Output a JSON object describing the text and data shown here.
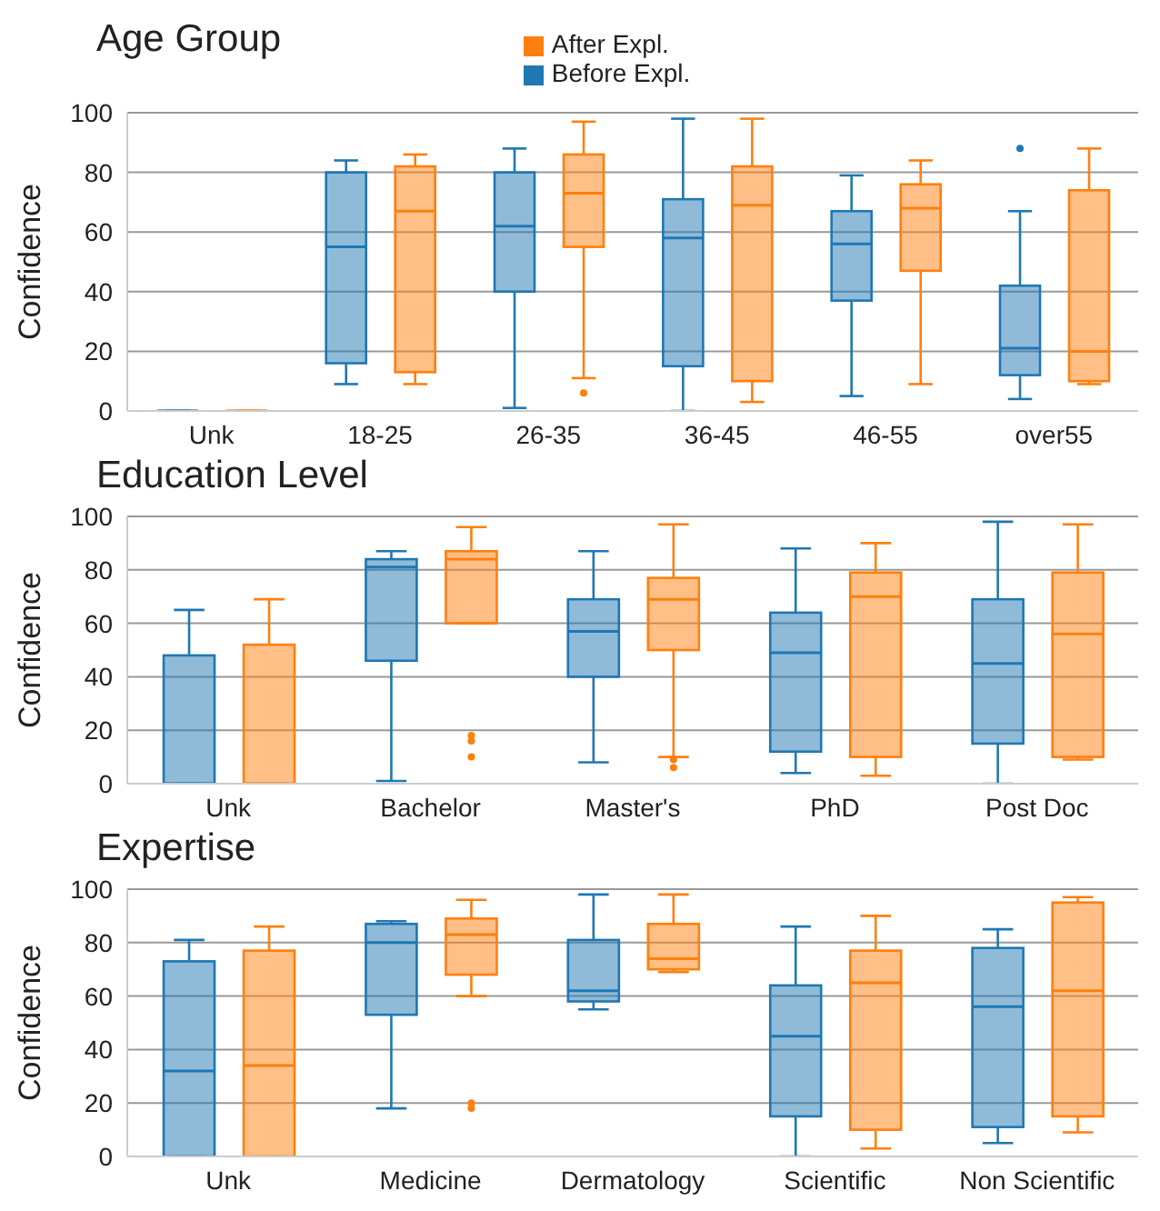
{
  "chart_data": [
    {
      "type": "box",
      "title": "Age Group",
      "ylabel": "Confidence",
      "categories": [
        "Unk",
        "18-25",
        "26-35",
        "36-45",
        "46-55",
        "over55"
      ],
      "ylim": [
        0,
        100
      ],
      "yticks": [
        0,
        20,
        40,
        60,
        80,
        100
      ],
      "grid": "y",
      "legend": "top",
      "series": [
        {
          "name": "Before Expl.",
          "color": "#1f77b4",
          "boxes": [
            {
              "low": 0,
              "q1": 0,
              "median": 0,
              "q3": 0,
              "high": 0
            },
            {
              "low": 9,
              "q1": 16,
              "median": 55,
              "q3": 80,
              "high": 84
            },
            {
              "low": 1,
              "q1": 40,
              "median": 62,
              "q3": 80,
              "high": 88
            },
            {
              "low": 0,
              "q1": 15,
              "median": 58,
              "q3": 71,
              "high": 98
            },
            {
              "low": 5,
              "q1": 37,
              "median": 56,
              "q3": 67,
              "high": 79
            },
            {
              "low": 4,
              "q1": 12,
              "median": 21,
              "q3": 42,
              "high": 67,
              "outliers": [
                88
              ]
            }
          ]
        },
        {
          "name": "After Expl.",
          "color": "#ff7f0e",
          "boxes": [
            {
              "low": 0,
              "q1": 0,
              "median": 0,
              "q3": 0,
              "high": 0
            },
            {
              "low": 9,
              "q1": 13,
              "median": 67,
              "q3": 82,
              "high": 86
            },
            {
              "low": 11,
              "q1": 55,
              "median": 73,
              "q3": 86,
              "high": 97,
              "outliers": [
                6
              ]
            },
            {
              "low": 3,
              "q1": 10,
              "median": 69,
              "q3": 82,
              "high": 98
            },
            {
              "low": 9,
              "q1": 47,
              "median": 68,
              "q3": 76,
              "high": 84
            },
            {
              "low": 9,
              "q1": 10,
              "median": 20,
              "q3": 74,
              "high": 88
            }
          ]
        }
      ]
    },
    {
      "type": "box",
      "title": "Education Level",
      "ylabel": "Confidence",
      "categories": [
        "Unk",
        "Bachelor",
        "Master's",
        "PhD",
        "Post Doc"
      ],
      "ylim": [
        0,
        100
      ],
      "yticks": [
        0,
        20,
        40,
        60,
        80,
        100
      ],
      "grid": "y",
      "legend": false,
      "series": [
        {
          "color": "#1f77b4",
          "boxes": [
            {
              "low": 0,
              "q1": 0,
              "median": 0,
              "q3": 48,
              "high": 65
            },
            {
              "low": 1,
              "q1": 46,
              "median": 81,
              "q3": 84,
              "high": 87
            },
            {
              "low": 8,
              "q1": 40,
              "median": 57,
              "q3": 69,
              "high": 87
            },
            {
              "low": 4,
              "q1": 12,
              "median": 49,
              "q3": 64,
              "high": 88
            },
            {
              "low": 0,
              "q1": 15,
              "median": 45,
              "q3": 69,
              "high": 98
            }
          ]
        },
        {
          "color": "#ff7f0e",
          "boxes": [
            {
              "low": 0,
              "q1": 0,
              "median": 0,
              "q3": 52,
              "high": 69
            },
            {
              "low": 60,
              "q1": 60,
              "median": 84,
              "q3": 87,
              "high": 96,
              "outliers": [
                18,
                16,
                10
              ]
            },
            {
              "low": 10,
              "q1": 50,
              "median": 69,
              "q3": 77,
              "high": 97,
              "outliers": [
                9,
                6
              ]
            },
            {
              "low": 3,
              "q1": 10,
              "median": 70,
              "q3": 79,
              "high": 90
            },
            {
              "low": 9,
              "q1": 10,
              "median": 56,
              "q3": 79,
              "high": 97
            }
          ]
        }
      ]
    },
    {
      "type": "box",
      "title": "Expertise",
      "ylabel": "Confidence",
      "categories": [
        "Unk",
        "Medicine",
        "Dermatology",
        "Scientific",
        "Non Scientific"
      ],
      "ylim": [
        0,
        100
      ],
      "yticks": [
        0,
        20,
        40,
        60,
        80,
        100
      ],
      "grid": "y",
      "legend": false,
      "series": [
        {
          "color": "#1f77b4",
          "boxes": [
            {
              "low": 0,
              "q1": 0,
              "median": 32,
              "q3": 73,
              "high": 81
            },
            {
              "low": 18,
              "q1": 53,
              "median": 80,
              "q3": 87,
              "high": 88
            },
            {
              "low": 55,
              "q1": 58,
              "median": 62,
              "q3": 81,
              "high": 98
            },
            {
              "low": 0,
              "q1": 15,
              "median": 45,
              "q3": 64,
              "high": 86
            },
            {
              "low": 5,
              "q1": 11,
              "median": 56,
              "q3": 78,
              "high": 85
            }
          ]
        },
        {
          "color": "#ff7f0e",
          "boxes": [
            {
              "low": 0,
              "q1": 0,
              "median": 34,
              "q3": 77,
              "high": 86
            },
            {
              "low": 60,
              "q1": 68,
              "median": 83,
              "q3": 89,
              "high": 96,
              "outliers": [
                20,
                18
              ]
            },
            {
              "low": 69,
              "q1": 70,
              "median": 74,
              "q3": 87,
              "high": 98
            },
            {
              "low": 3,
              "q1": 10,
              "median": 65,
              "q3": 77,
              "high": 90
            },
            {
              "low": 9,
              "q1": 15,
              "median": 62,
              "q3": 95,
              "high": 97
            }
          ]
        }
      ]
    }
  ]
}
